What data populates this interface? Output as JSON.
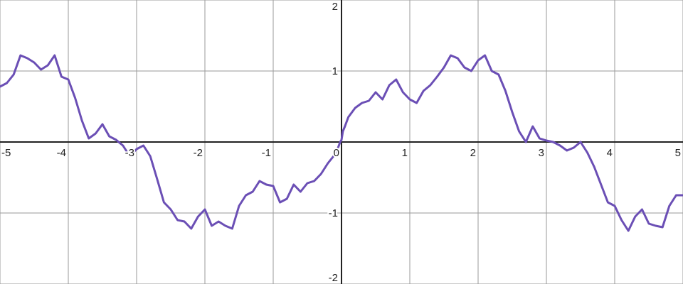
{
  "chart_data": {
    "type": "line",
    "title": "",
    "xlabel": "",
    "ylabel": "",
    "xlim": [
      -5,
      5
    ],
    "ylim": [
      -2,
      2
    ],
    "grid": true,
    "x_ticks": [
      -5,
      -4,
      -3,
      -2,
      -1,
      0,
      1,
      2,
      3,
      4,
      5
    ],
    "x_tick_labels": [
      "-5",
      "-4",
      "-3",
      "-2",
      "-1",
      "0",
      "1",
      "2",
      "3",
      "4",
      "5"
    ],
    "y_ticks": [
      -2,
      -1,
      1,
      2
    ],
    "y_tick_labels": [
      "-2",
      "-1",
      "1",
      "2"
    ],
    "series": [
      {
        "color": "#6b4fb5",
        "x": [
          -5.0,
          -4.9,
          -4.8,
          -4.7,
          -4.6,
          -4.5,
          -4.4,
          -4.3,
          -4.2,
          -4.1,
          -4.0,
          -3.9,
          -3.8,
          -3.7,
          -3.6,
          -3.5,
          -3.4,
          -3.3,
          -3.2,
          -3.1,
          -3.0,
          -2.9,
          -2.8,
          -2.7,
          -2.6,
          -2.5,
          -2.4,
          -2.3,
          -2.2,
          -2.1,
          -2.0,
          -1.9,
          -1.8,
          -1.7,
          -1.6,
          -1.5,
          -1.4,
          -1.3,
          -1.2,
          -1.1,
          -1.0,
          -0.9,
          -0.8,
          -0.7,
          -0.6,
          -0.5,
          -0.4,
          -0.3,
          -0.2,
          -0.1,
          -0.05,
          -0.02,
          0.0,
          0.02,
          0.05,
          0.1,
          0.2,
          0.3,
          0.4,
          0.5,
          0.6,
          0.7,
          0.8,
          0.9,
          1.0,
          1.1,
          1.2,
          1.3,
          1.4,
          1.5,
          1.6,
          1.7,
          1.8,
          1.9,
          2.0,
          2.1,
          2.2,
          2.3,
          2.4,
          2.5,
          2.6,
          2.7,
          2.8,
          2.9,
          3.0,
          3.1,
          3.2,
          3.3,
          3.4,
          3.5,
          3.6,
          3.7,
          3.8,
          3.9,
          4.0,
          4.1,
          4.2,
          4.3,
          4.4,
          4.5,
          4.6,
          4.7,
          4.8,
          4.9,
          5.0
        ],
        "y": [
          0.78,
          0.83,
          0.95,
          1.22,
          1.18,
          1.12,
          1.02,
          1.08,
          1.22,
          0.92,
          0.88,
          0.62,
          0.3,
          0.05,
          0.12,
          0.25,
          0.08,
          0.03,
          -0.05,
          -0.2,
          -0.1,
          -0.05,
          -0.2,
          -0.52,
          -0.85,
          -0.95,
          -1.1,
          -1.12,
          -1.22,
          -1.05,
          -0.95,
          -1.18,
          -1.12,
          -1.18,
          -1.22,
          -0.9,
          -0.75,
          -0.7,
          -0.55,
          -0.6,
          -0.62,
          -0.85,
          -0.8,
          -0.6,
          -0.7,
          -0.58,
          -0.55,
          -0.45,
          -0.3,
          -0.18,
          -0.08,
          0.0,
          0.03,
          0.15,
          0.22,
          0.35,
          0.48,
          0.55,
          0.58,
          0.7,
          0.6,
          0.8,
          0.88,
          0.7,
          0.6,
          0.55,
          0.72,
          0.8,
          0.92,
          1.05,
          1.22,
          1.18,
          1.05,
          1.0,
          1.15,
          1.22,
          1.0,
          0.95,
          0.72,
          0.42,
          0.15,
          0.0,
          0.22,
          0.05,
          0.02,
          0.0,
          -0.05,
          -0.12,
          -0.08,
          0.0,
          -0.15,
          -0.35,
          -0.6,
          -0.85,
          -0.9,
          -1.1,
          -1.25,
          -1.05,
          -0.95,
          -1.15,
          -1.18,
          -1.2,
          -0.9,
          -0.75,
          -0.75
        ]
      }
    ]
  }
}
